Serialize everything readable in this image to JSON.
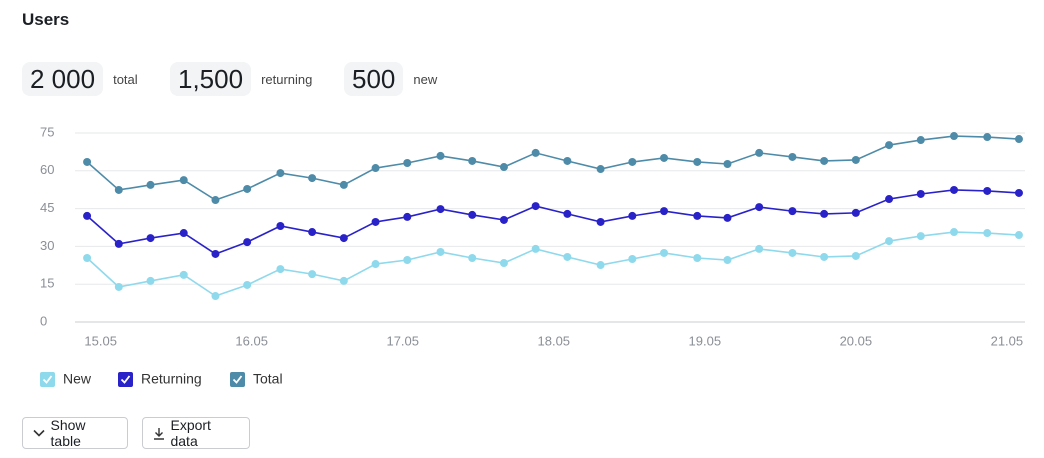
{
  "header": {
    "title": "Users"
  },
  "stats": [
    {
      "value": "2 000",
      "label": "total"
    },
    {
      "value": "1,500",
      "label": "returning"
    },
    {
      "value": "500",
      "label": "new"
    }
  ],
  "chart_data": {
    "type": "line",
    "x": [
      14.91,
      15.12,
      15.33,
      15.55,
      15.76,
      15.97,
      16.19,
      16.4,
      16.61,
      16.82,
      17.03,
      17.25,
      17.46,
      17.67,
      17.88,
      18.09,
      18.31,
      18.52,
      18.73,
      18.95,
      19.15,
      19.36,
      19.58,
      19.79,
      20.0,
      20.22,
      20.43,
      20.65,
      20.87,
      21.08
    ],
    "series": [
      {
        "name": "New",
        "color": "#8fd9ec",
        "values": [
          25.4,
          13.9,
          16.3,
          18.7,
          10.3,
          14.7,
          21.0,
          19.0,
          16.3,
          23.0,
          24.6,
          27.8,
          25.4,
          23.4,
          29.0,
          25.8,
          22.6,
          25.0,
          27.4,
          25.4,
          24.6,
          29.0,
          27.4,
          25.8,
          26.2,
          32.1,
          34.1,
          35.7,
          35.3,
          34.5
        ]
      },
      {
        "name": "Returning",
        "color": "#2a22c9",
        "values": [
          42.1,
          31.0,
          33.3,
          35.3,
          27.0,
          31.7,
          38.1,
          35.7,
          33.3,
          39.7,
          41.7,
          44.8,
          42.5,
          40.5,
          46.0,
          42.9,
          39.7,
          42.1,
          44.0,
          42.1,
          41.3,
          45.6,
          44.0,
          42.9,
          43.3,
          48.8,
          50.8,
          52.4,
          52.0,
          51.2
        ]
      },
      {
        "name": "Total",
        "color": "#4e8ba8",
        "values": [
          63.5,
          52.4,
          54.4,
          56.3,
          48.4,
          52.8,
          59.1,
          57.1,
          54.4,
          61.1,
          63.1,
          65.9,
          63.9,
          61.5,
          67.1,
          63.9,
          60.7,
          63.5,
          65.1,
          63.5,
          62.7,
          67.1,
          65.5,
          63.9,
          64.3,
          70.2,
          72.2,
          73.8,
          73.4,
          72.6
        ]
      }
    ],
    "xlim": [
      14.83,
      21.12
    ],
    "xticks": [
      {
        "value": 15,
        "label": "15.05"
      },
      {
        "value": 16,
        "label": "16.05"
      },
      {
        "value": 17,
        "label": "17.05"
      },
      {
        "value": 18,
        "label": "18.05"
      },
      {
        "value": 19,
        "label": "19.05"
      },
      {
        "value": 20,
        "label": "20.05"
      },
      {
        "value": 21,
        "label": "21.05"
      }
    ],
    "ylim": [
      0,
      75
    ],
    "yticks": [
      0,
      15,
      30,
      45,
      60,
      75
    ],
    "grid": true
  },
  "buttons": [
    "Show table",
    "Export data"
  ]
}
